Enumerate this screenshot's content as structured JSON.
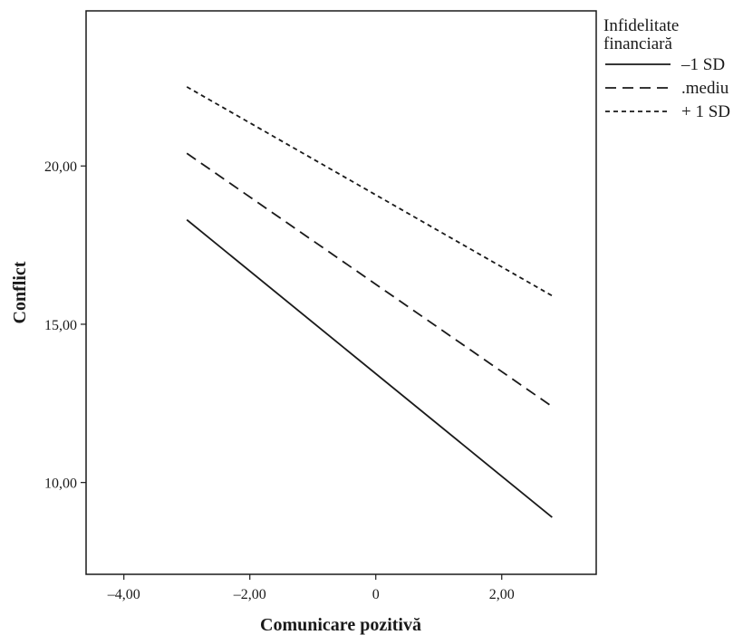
{
  "chart_data": {
    "type": "line",
    "title": "",
    "xlabel": "Comunicare pozitivă",
    "ylabel": "Conflict",
    "xlim": [
      -4.6,
      3.5
    ],
    "ylim": [
      7.1,
      24.9
    ],
    "xticks": [
      -4,
      -2,
      0,
      2
    ],
    "xtick_labels": [
      "–4,00",
      "–2,00",
      "0",
      "2,00"
    ],
    "yticks": [
      10,
      15,
      20
    ],
    "ytick_labels": [
      "10,00",
      "15,00",
      "20,00"
    ],
    "grid": false,
    "legend": {
      "title_lines": [
        "Infidelitate",
        "financiară"
      ],
      "placement": "top-right outside plot"
    },
    "series": [
      {
        "name": "–1 SD",
        "style": "solid",
        "x": [
          -3.0,
          2.8
        ],
        "y": [
          18.3,
          8.9
        ]
      },
      {
        "name": ".mediu",
        "style": "long-dash",
        "x": [
          -3.0,
          2.8
        ],
        "y": [
          20.4,
          12.4
        ]
      },
      {
        "name": "+ 1 SD",
        "style": "short-dash",
        "x": [
          -3.0,
          2.8
        ],
        "y": [
          22.5,
          15.9
        ]
      }
    ],
    "line_color": "#1a1a1a"
  }
}
